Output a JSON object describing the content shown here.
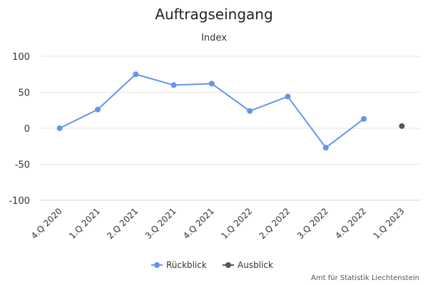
{
  "chart_data": {
    "type": "line",
    "title": "Auftragseingang",
    "subtitle": "Index",
    "categories": [
      "4.Q 2020",
      "1.Q 2021",
      "2.Q 2021",
      "3.Q 2021",
      "4.Q 2021",
      "1.Q 2022",
      "2.Q 2022",
      "3.Q 2022",
      "4.Q 2022",
      "1.Q 2023"
    ],
    "series": [
      {
        "name": "Rückblick",
        "color": "#6495ed",
        "values": [
          0,
          26,
          75,
          60,
          62,
          24,
          44,
          -27,
          13,
          null
        ]
      },
      {
        "name": "Ausblick",
        "color": "#555555",
        "values": [
          null,
          null,
          null,
          null,
          null,
          null,
          null,
          null,
          null,
          3
        ]
      }
    ],
    "yticks": [
      "100",
      "50",
      "0",
      "-50",
      "-100"
    ],
    "ylim": [
      -100,
      100
    ],
    "grid": true,
    "legend": "bottom-center",
    "credit": "Amt für Statistik Liechtenstein"
  }
}
